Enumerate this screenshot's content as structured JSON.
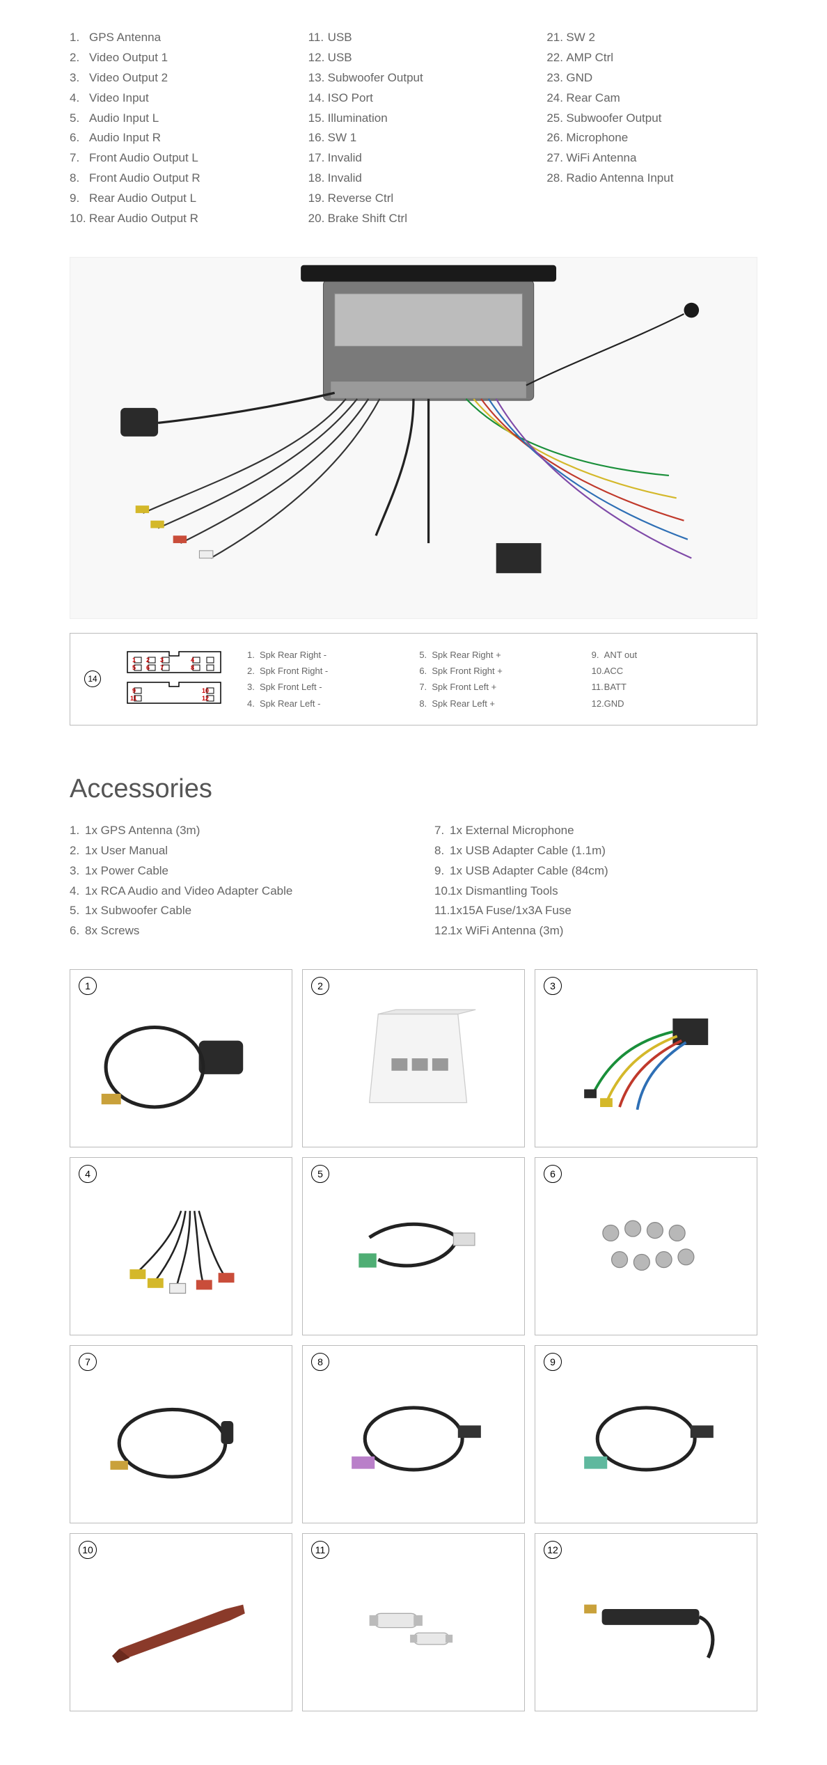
{
  "ports": {
    "col1": [
      {
        "n": "1.",
        "label": "GPS Antenna"
      },
      {
        "n": "2.",
        "label": "Video Output 1"
      },
      {
        "n": "3.",
        "label": "Video Output 2"
      },
      {
        "n": "4.",
        "label": "Video Input"
      },
      {
        "n": "5.",
        "label": "Audio Input L"
      },
      {
        "n": "6.",
        "label": "Audio Input R"
      },
      {
        "n": "7.",
        "label": "Front Audio Output L"
      },
      {
        "n": "8.",
        "label": "Front Audio Output R"
      },
      {
        "n": "9.",
        "label": "Rear Audio Output L"
      },
      {
        "n": "10.",
        "label": "Rear Audio Output R"
      }
    ],
    "col2": [
      {
        "n": "11.",
        "label": "USB"
      },
      {
        "n": "12.",
        "label": "USB"
      },
      {
        "n": "13.",
        "label": "Subwoofer Output"
      },
      {
        "n": "14.",
        "label": "ISO Port"
      },
      {
        "n": "15.",
        "label": "Illumination"
      },
      {
        "n": "16.",
        "label": "SW 1"
      },
      {
        "n": "17.",
        "label": "Invalid"
      },
      {
        "n": "18.",
        "label": "Invalid"
      },
      {
        "n": "19.",
        "label": "Reverse Ctrl"
      },
      {
        "n": "20.",
        "label": "Brake Shift Ctrl"
      }
    ],
    "col3": [
      {
        "n": "21.",
        "label": "SW 2"
      },
      {
        "n": "22.",
        "label": "AMP Ctrl"
      },
      {
        "n": "23.",
        "label": "GND"
      },
      {
        "n": "24.",
        "label": "Rear Cam"
      },
      {
        "n": "25.",
        "label": "Subwoofer Output"
      },
      {
        "n": "26.",
        "label": "Microphone"
      },
      {
        "n": "27.",
        "label": "WiFi Antenna"
      },
      {
        "n": "28.",
        "label": "Radio Antenna Input"
      }
    ]
  },
  "iso": {
    "ref": "14",
    "pins_col1": [
      {
        "n": "1.",
        "label": "Spk Rear Right -"
      },
      {
        "n": "2.",
        "label": "Spk Front Right -"
      },
      {
        "n": "3.",
        "label": "Spk Front Left -"
      },
      {
        "n": "4.",
        "label": "Spk Rear Left -"
      }
    ],
    "pins_col2": [
      {
        "n": "5.",
        "label": "Spk Rear Right +"
      },
      {
        "n": "6.",
        "label": "Spk Front Right +"
      },
      {
        "n": "7.",
        "label": "Spk Front Left +"
      },
      {
        "n": "8.",
        "label": "Spk Rear Left +"
      }
    ],
    "pins_col3": [
      {
        "n": "9.",
        "label": "ANT out"
      },
      {
        "n": "10.",
        "label": "ACC"
      },
      {
        "n": "11.",
        "label": "BATT"
      },
      {
        "n": "12.",
        "label": "GND"
      }
    ]
  },
  "accessories": {
    "title": "Accessories",
    "list_col1": [
      {
        "n": "1.",
        "label": "1x GPS Antenna (3m)"
      },
      {
        "n": "2.",
        "label": "1x User Manual"
      },
      {
        "n": "3.",
        "label": "1x Power Cable"
      },
      {
        "n": "4.",
        "label": "1x RCA Audio and Video Adapter Cable"
      },
      {
        "n": "5.",
        "label": "1x Subwoofer Cable"
      },
      {
        "n": "6.",
        "label": "8x Screws"
      }
    ],
    "list_col2": [
      {
        "n": "7.",
        "label": "1x External Microphone"
      },
      {
        "n": "8.",
        "label": "1x USB Adapter Cable (1.1m)"
      },
      {
        "n": "9.",
        "label": "1x USB Adapter Cable (84cm)"
      },
      {
        "n": "10.",
        "label": "1x Dismantling Tools"
      },
      {
        "n": "11.",
        "label": "1x15A Fuse/1x3A Fuse"
      },
      {
        "n": "12.",
        "label": "1x WiFi Antenna (3m)"
      }
    ],
    "grid": [
      {
        "n": "1",
        "icon": "gps-antenna"
      },
      {
        "n": "2",
        "icon": "manual"
      },
      {
        "n": "3",
        "icon": "power-cable"
      },
      {
        "n": "4",
        "icon": "rca-cable"
      },
      {
        "n": "5",
        "icon": "subwoofer-cable"
      },
      {
        "n": "6",
        "icon": "screws"
      },
      {
        "n": "7",
        "icon": "microphone"
      },
      {
        "n": "8",
        "icon": "usb-cable-1"
      },
      {
        "n": "9",
        "icon": "usb-cable-2"
      },
      {
        "n": "10",
        "icon": "pry-tool"
      },
      {
        "n": "11",
        "icon": "fuses"
      },
      {
        "n": "12",
        "icon": "wifi-antenna"
      }
    ]
  },
  "colors": {
    "border": "#bbbbbb",
    "text": "#666666",
    "pin_label": "#cc0000"
  }
}
